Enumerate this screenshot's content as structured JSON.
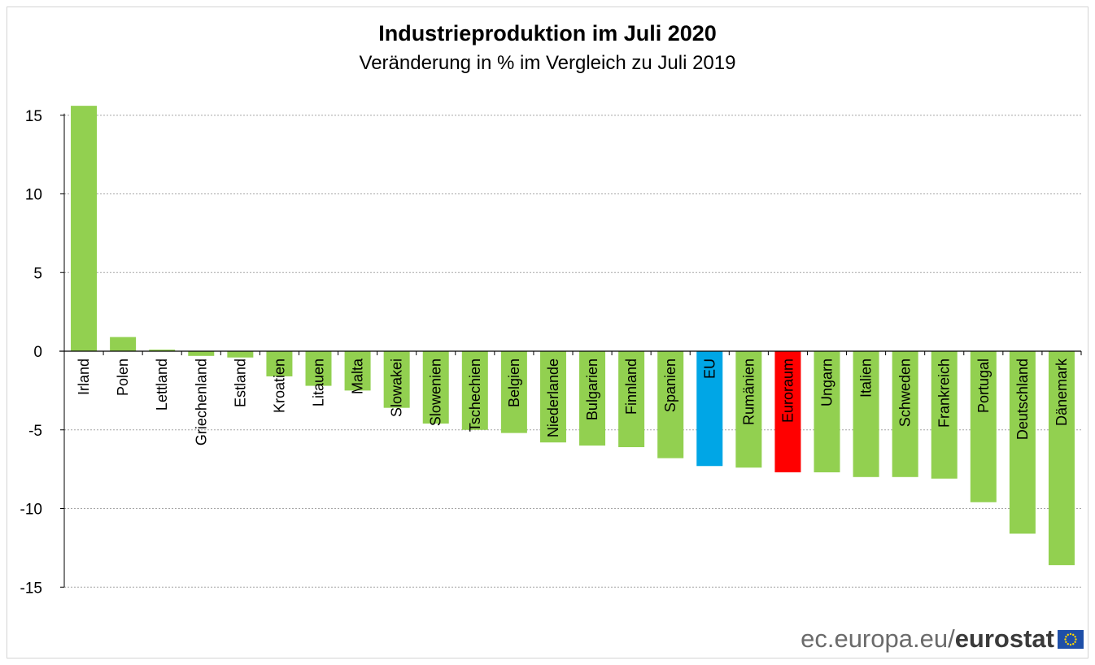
{
  "title": "Industrieproduktion im Juli 2020",
  "subtitle": "Veränderung in % im Vergleich zu Juli 2019",
  "brand": {
    "host": "ec.europa.eu/",
    "product": "eurostat",
    "flag_icon": "eu-flag-icon"
  },
  "colors": {
    "default_bar": "#92D050",
    "eu_bar": "#00A6E6",
    "euro_area_bar": "#FF0000",
    "gridline": "#a6a6a6"
  },
  "chart_data": {
    "type": "bar",
    "title": "Industrieproduktion im Juli 2020",
    "subtitle": "Veränderung in % im Vergleich zu Juli 2019",
    "xlabel": "",
    "ylabel": "",
    "ylim": [
      -15,
      15
    ],
    "yticks": [
      "15",
      "10",
      "5",
      "0",
      "-5",
      "-10",
      "-15"
    ],
    "grid": true,
    "categories": [
      "Irland",
      "Polen",
      "Lettland",
      "Griechenland",
      "Estland",
      "Kroatien",
      "Litauen",
      "Malta",
      "Slowakei",
      "Slowenien",
      "Tschechien",
      "Belgien",
      "Niederlande",
      "Bulgarien",
      "Finnland",
      "Spanien",
      "EU",
      "Rumänien",
      "Euroraum",
      "Ungarn",
      "Italien",
      "Schweden",
      "Frankreich",
      "Portugal",
      "Deutschland",
      "Dänemark"
    ],
    "values": [
      15.6,
      0.9,
      0.1,
      -0.3,
      -0.4,
      -1.6,
      -2.2,
      -2.5,
      -3.6,
      -4.6,
      -5.0,
      -5.2,
      -5.8,
      -6.0,
      -6.1,
      -6.8,
      -7.3,
      -7.4,
      -7.7,
      -7.7,
      -8.0,
      -8.0,
      -8.1,
      -9.6,
      -11.6,
      -13.6
    ],
    "highlights": {
      "EU": "#00A6E6",
      "Euroraum": "#FF0000"
    }
  }
}
